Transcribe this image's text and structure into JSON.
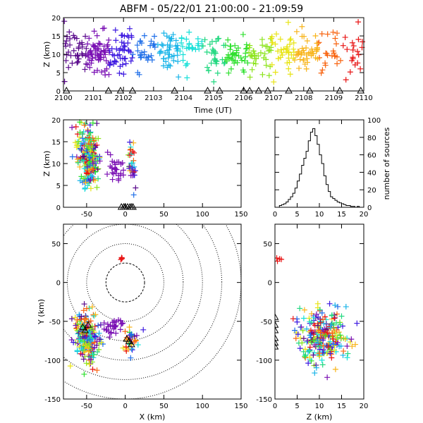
{
  "title": "ABFM - 05/22/01 21:00:00 - 21:09:59",
  "colors": {
    "background": "#ffffff",
    "axes": "#000000",
    "rainbow": [
      "#5a0a8c",
      "#7a10b4",
      "#3c18e0",
      "#1f6ee8",
      "#18b4e8",
      "#18e0d8",
      "#22d880",
      "#2ee02e",
      "#8ce41c",
      "#e8e414",
      "#f8b41a",
      "#f86410",
      "#e81414"
    ]
  },
  "chart_data": [
    {
      "id": "time-height",
      "type": "scatter",
      "xlabel": "Time (UT)",
      "ylabel": "Z (km)",
      "xlim": [
        2100,
        2110
      ],
      "ylim": [
        0,
        20
      ],
      "x_ticks": [
        "2100",
        "2101",
        "2102",
        "2103",
        "2104",
        "2105",
        "2106",
        "2107",
        "2108",
        "2109",
        "2110"
      ],
      "y_ticks": [
        "0",
        "5",
        "10",
        "15",
        "20"
      ],
      "marker": "+",
      "color_by": "time",
      "clusters": [
        {
          "t_range": [
            2100.0,
            2100.8
          ],
          "z_mean": 10.5,
          "z_sd": 3.0,
          "n": 40
        },
        {
          "t_range": [
            2100.8,
            2101.6
          ],
          "z_mean": 10.0,
          "z_sd": 3.0,
          "n": 70
        },
        {
          "t_range": [
            2101.6,
            2102.6
          ],
          "z_mean": 11.0,
          "z_sd": 3.2,
          "n": 55
        },
        {
          "t_range": [
            2102.6,
            2103.6
          ],
          "z_mean": 10.8,
          "z_sd": 3.0,
          "n": 45
        },
        {
          "t_range": [
            2103.6,
            2104.6
          ],
          "z_mean": 11.0,
          "z_sd": 2.6,
          "n": 40
        },
        {
          "t_range": [
            2104.6,
            2105.6
          ],
          "z_mean": 10.0,
          "z_sd": 3.0,
          "n": 45
        },
        {
          "t_range": [
            2105.6,
            2106.6
          ],
          "z_mean": 10.5,
          "z_sd": 2.8,
          "n": 45
        },
        {
          "t_range": [
            2106.6,
            2107.6
          ],
          "z_mean": 10.0,
          "z_sd": 3.2,
          "n": 50
        },
        {
          "t_range": [
            2107.6,
            2108.6
          ],
          "z_mean": 10.5,
          "z_sd": 3.0,
          "n": 50
        },
        {
          "t_range": [
            2108.6,
            2110.0
          ],
          "z_mean": 10.5,
          "z_sd": 3.0,
          "n": 40
        }
      ],
      "triangle_times": [
        2100.1,
        2101.5,
        2101.9,
        2102.3,
        2103.7,
        2104.8,
        2105.2,
        2106.0,
        2106.2,
        2106.5,
        2106.8,
        2107.5,
        2108.2,
        2109.2,
        2109.9
      ]
    },
    {
      "id": "x-height",
      "type": "scatter",
      "ylabel": "Z (km)",
      "xlim": [
        -80,
        150
      ],
      "ylim": [
        0,
        20
      ],
      "x_ticks": [
        "-50",
        "0",
        "50",
        "100",
        "150"
      ],
      "y_ticks": [
        "0",
        "5",
        "10",
        "15",
        "20"
      ],
      "marker": "+",
      "clusters": [
        {
          "x_mean": -46,
          "x_sd": 5,
          "z_mean": 11,
          "z_sd": 3.2,
          "n": 220,
          "color": "time"
        },
        {
          "x_mean": -60,
          "x_sd": 4,
          "z_mean": 15,
          "z_sd": 3,
          "n": 30,
          "color": "time"
        },
        {
          "x_mean": -14,
          "x_sd": 6,
          "z_mean": 8.5,
          "z_sd": 1.8,
          "n": 30,
          "color": "early"
        },
        {
          "x_mean": 8,
          "x_sd": 2.5,
          "z_mean": 10,
          "z_sd": 3.2,
          "n": 35,
          "color": "time"
        }
      ],
      "triangle_x": [
        -5,
        -2,
        0,
        3,
        6,
        8,
        10
      ]
    },
    {
      "id": "height-histogram",
      "type": "histogram",
      "ylabel": "number of sources",
      "xlim": [
        0,
        20
      ],
      "ylim": [
        0,
        100
      ],
      "x_ticks": [
        "0",
        "5",
        "10",
        "15",
        "20"
      ],
      "y_ticks": [
        "0",
        "20",
        "40",
        "60",
        "80",
        "100"
      ],
      "bin_width": 0.5,
      "bin_start": 0,
      "values": [
        0,
        0,
        2,
        3,
        4,
        6,
        9,
        12,
        16,
        22,
        30,
        38,
        48,
        56,
        64,
        76,
        86,
        90,
        82,
        72,
        60,
        50,
        36,
        26,
        18,
        12,
        10,
        8,
        6,
        5,
        4,
        3,
        2,
        2,
        1,
        1,
        0,
        1,
        0,
        0
      ]
    },
    {
      "id": "plan-view",
      "type": "scatter",
      "xlabel": "X (km)",
      "ylabel": "Y (km)",
      "xlim": [
        -80,
        150
      ],
      "ylim": [
        -150,
        75
      ],
      "x_ticks": [
        "-50",
        "0",
        "50",
        "100",
        "150"
      ],
      "y_ticks": [
        "-150",
        "-100",
        "-50",
        "0",
        "50"
      ],
      "marker": "+",
      "range_rings_km": [
        25,
        50,
        75,
        100,
        125,
        150
      ],
      "clusters": [
        {
          "x_mean": -50,
          "x_sd": 8,
          "y_mean": -70,
          "y_sd": 18,
          "n": 200,
          "color": "time"
        },
        {
          "x_mean": -17,
          "x_sd": 7,
          "y_mean": -57,
          "y_sd": 5,
          "n": 30,
          "color": "early"
        },
        {
          "x_mean": 7,
          "x_sd": 5,
          "y_mean": -75,
          "y_sd": 8,
          "n": 35,
          "color": "time"
        },
        {
          "x_mean": -4,
          "x_sd": 1,
          "y_mean": 30,
          "y_sd": 1,
          "n": 4,
          "color": "late"
        }
      ],
      "stations": [
        {
          "x": -55,
          "y": -58
        },
        {
          "x": -52,
          "y": -62
        },
        {
          "x": -48,
          "y": -55
        },
        {
          "x": 2,
          "y": -73
        },
        {
          "x": 5,
          "y": -76
        },
        {
          "x": 8,
          "y": -80
        }
      ]
    },
    {
      "id": "height-y",
      "type": "scatter",
      "xlabel": "Z (km)",
      "xlim": [
        0,
        20
      ],
      "ylim": [
        -150,
        75
      ],
      "x_ticks": [
        "0",
        "5",
        "10",
        "15",
        "20"
      ],
      "y_ticks": [
        "-150",
        "-100",
        "-50",
        "0",
        "50"
      ],
      "marker": "+",
      "clusters": [
        {
          "z_mean": 11,
          "z_sd": 2.8,
          "y_mean": -70,
          "y_sd": 18,
          "n": 260,
          "color": "time"
        },
        {
          "z_mean": 1,
          "z_sd": 0.5,
          "y_mean": 30,
          "y_sd": 1,
          "n": 4,
          "color": "late"
        }
      ],
      "stations": [
        {
          "z": 0,
          "y": -45
        },
        {
          "z": 0,
          "y": -55
        },
        {
          "z": 0,
          "y": -62
        },
        {
          "z": 0,
          "y": -72
        },
        {
          "z": 0,
          "y": -78
        },
        {
          "z": 0,
          "y": -83
        }
      ]
    }
  ]
}
